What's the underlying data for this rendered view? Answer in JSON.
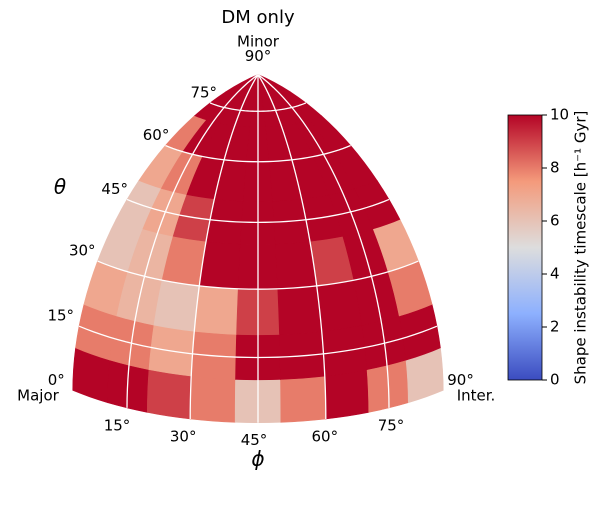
{
  "chart_data": {
    "type": "sky-heatmap",
    "title": "DM only",
    "xlabel": "ϕ",
    "ylabel": "θ",
    "annotations": [
      "Major",
      "Inter.",
      "Minor"
    ],
    "phi_bins": [
      0,
      10,
      20,
      30,
      40,
      50,
      60,
      70,
      80,
      90
    ],
    "theta_bins": [
      0,
      10,
      20,
      30,
      40,
      50,
      60,
      70,
      80,
      90
    ],
    "values": [
      [
        10,
        10,
        9,
        8,
        6,
        8,
        10,
        8,
        6
      ],
      [
        8,
        8,
        7,
        8,
        10,
        10,
        10,
        10,
        10
      ],
      [
        7,
        6.5,
        6,
        7,
        9,
        10,
        10,
        10,
        8
      ],
      [
        6,
        6.5,
        8,
        10,
        10,
        10,
        9,
        10,
        7
      ],
      [
        6,
        7,
        9,
        10,
        10,
        10,
        10,
        10,
        10
      ],
      [
        7,
        8,
        10,
        10,
        10,
        10,
        10,
        10,
        10
      ],
      [
        8,
        10,
        10,
        10,
        10,
        10,
        10,
        10,
        10
      ],
      [
        10,
        10,
        10,
        10,
        10,
        10,
        10,
        10,
        10
      ],
      [
        10,
        10,
        10,
        10,
        10,
        10,
        10,
        10,
        10
      ]
    ],
    "xticks": [
      {
        "value": 15,
        "label": "15°"
      },
      {
        "value": 30,
        "label": "30°"
      },
      {
        "value": 45,
        "label": "45°"
      },
      {
        "value": 60,
        "label": "60°"
      },
      {
        "value": 75,
        "label": "75°"
      },
      {
        "value": 90,
        "label": "90°"
      }
    ],
    "yticks": [
      {
        "value": 0,
        "label": "0°"
      },
      {
        "value": 15,
        "label": "15°"
      },
      {
        "value": 30,
        "label": "30°"
      },
      {
        "value": 45,
        "label": "45°"
      },
      {
        "value": 60,
        "label": "60°"
      },
      {
        "value": 75,
        "label": "75°"
      },
      {
        "value": 90,
        "label": "90°"
      }
    ],
    "colorbar_label": "Shape instability timescale [h⁻¹ Gyr]",
    "clim": [
      0,
      10
    ],
    "cticks": [
      0,
      2,
      4,
      6,
      8,
      10
    ],
    "colormap": [
      "#3b4cc0",
      "#8db0fe",
      "#dddddd",
      "#f49a7b",
      "#b40426"
    ],
    "grid": true
  }
}
